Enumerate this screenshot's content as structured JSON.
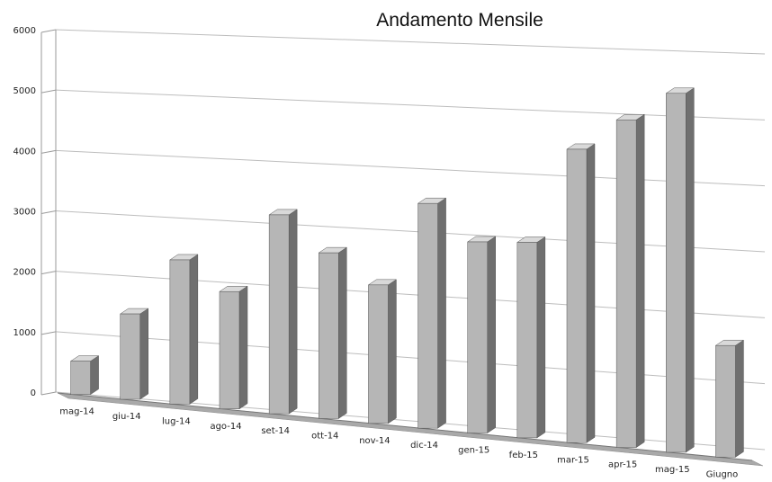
{
  "chart_data": {
    "type": "bar",
    "title": "Andamento Mensile",
    "categories": [
      "mag-14",
      "giu-14",
      "lug-14",
      "ago-14",
      "set-14",
      "ott-14",
      "nov-14",
      "dic-14",
      "gen-15",
      "feb-15",
      "mar-15",
      "apr-15",
      "mag-15",
      "Giugno"
    ],
    "values": [
      550,
      1400,
      2350,
      1900,
      3200,
      2650,
      2200,
      3550,
      3000,
      3050,
      4550,
      5050,
      5500,
      1700
    ],
    "yticks": [
      "0",
      "1000",
      "2000",
      "3000",
      "4000",
      "5000",
      "6000"
    ],
    "ylim": [
      0,
      6000
    ],
    "grid": true,
    "legend": "none",
    "colors": {
      "bar_front": "#b6b6b6",
      "bar_side": "#6f6f6f",
      "bar_top": "#d9d9d9",
      "floor": "#a9a9a9"
    }
  }
}
